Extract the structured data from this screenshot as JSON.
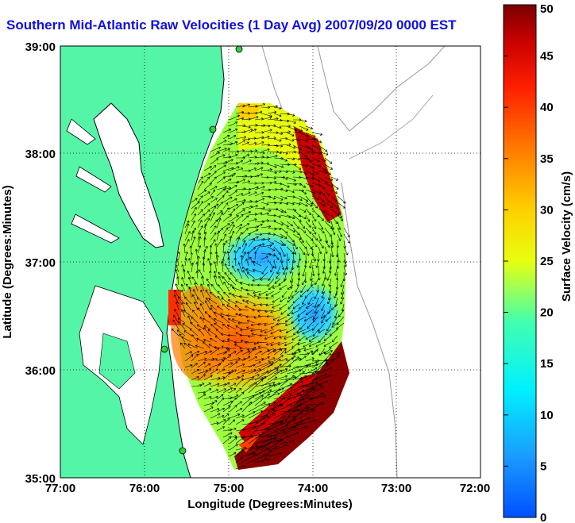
{
  "title": "Southern Mid-Atlantic Raw Velocities (1 Day Avg) 2007/09/20 0000 EST",
  "map": {
    "xlabel": "Longitude (Degrees:Minutes)",
    "ylabel": "Latitude (Degrees:Minutes)",
    "x_ticks": [
      "77:00",
      "76:00",
      "75:00",
      "74:00",
      "73:00",
      "72:00"
    ],
    "y_ticks": [
      "39:00",
      "38:00",
      "37:00",
      "36:00",
      "35:00"
    ],
    "land_color": "#55f5a8",
    "grid": "dotted"
  },
  "colorbar": {
    "label": "Surface Velocity (cm/s)",
    "ticks": [
      "50",
      "45",
      "40",
      "35",
      "30",
      "25",
      "20",
      "15",
      "10",
      "5",
      "0"
    ],
    "min": 0,
    "max": 50
  },
  "stations": [
    "green-dot",
    "green-dot",
    "green-dot",
    "green-dot"
  ]
}
